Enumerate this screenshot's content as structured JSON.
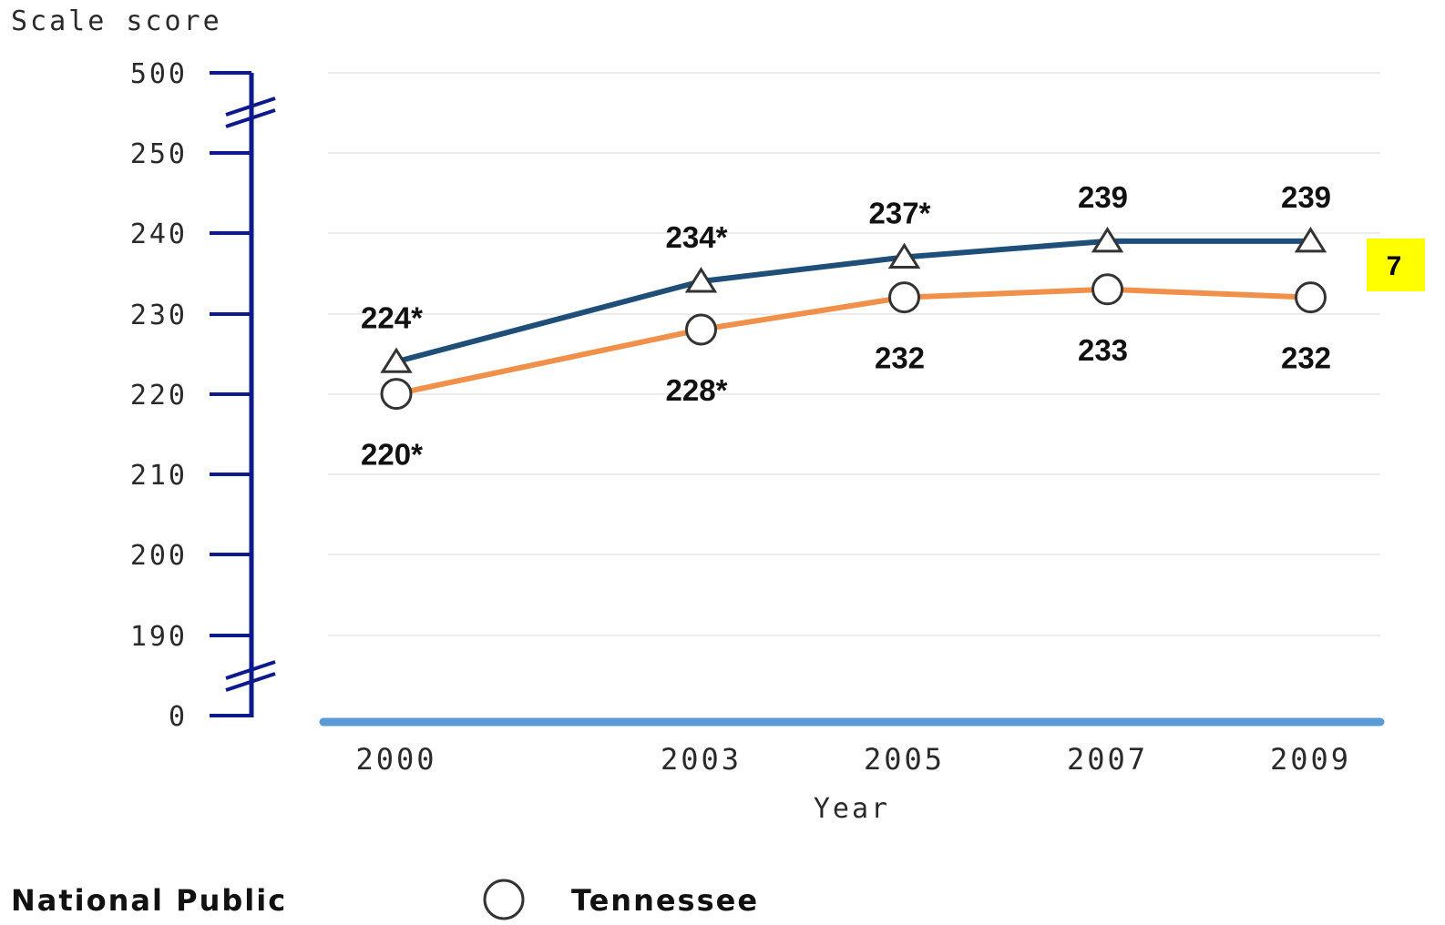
{
  "chart_data": {
    "type": "line",
    "ylabel": "Scale score",
    "xlabel": "Year",
    "categories": [
      "2000",
      "2003",
      "2005",
      "2007",
      "2009"
    ],
    "x": [
      2000,
      2003,
      2005,
      2007,
      2009
    ],
    "y_ticks": [
      "500",
      "250",
      "240",
      "230",
      "220",
      "210",
      "200",
      "190",
      "0"
    ],
    "y_axis_breaks": true,
    "grid": "horizontal",
    "series": [
      {
        "name": "National Public",
        "marker": "triangle",
        "color": "#1f4e79",
        "values": [
          224,
          234,
          237,
          239,
          239
        ],
        "labels": [
          "224*",
          "234*",
          "237*",
          "239",
          "239"
        ]
      },
      {
        "name": "Tennessee",
        "marker": "circle",
        "color": "#f0904a",
        "values": [
          220,
          228,
          232,
          233,
          232
        ],
        "labels": [
          "220*",
          "228*",
          "232",
          "233",
          "232"
        ]
      }
    ],
    "legend": [
      "National Public",
      "Tennessee"
    ],
    "legend_position": "bottom-left",
    "badge": "7"
  },
  "colors": {
    "axis": "#0d1a8c",
    "baseline": "#5b9bd5",
    "grid": "#ececec",
    "badge_bg": "#ffff00"
  }
}
